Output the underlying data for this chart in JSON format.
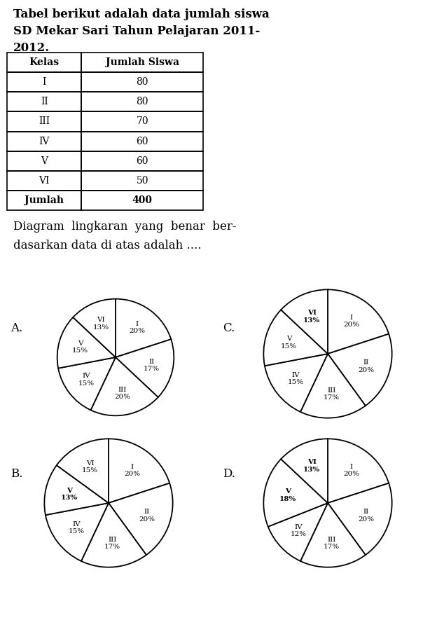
{
  "title_line1": "Tabel berikut adalah data jumlah siswa",
  "title_line2": "SD Mekar Sari Tahun Pelajaran 2011-",
  "title_line3": "2012.",
  "table_headers": [
    "Kelas",
    "Jumlah Siswa"
  ],
  "table_rows": [
    [
      "I",
      "80"
    ],
    [
      "II",
      "80"
    ],
    [
      "III",
      "70"
    ],
    [
      "IV",
      "60"
    ],
    [
      "V",
      "60"
    ],
    [
      "VI",
      "50"
    ]
  ],
  "table_footer": [
    "Jumlah",
    "400"
  ],
  "question_line1": "Diagram  lingkaran  yang  benar  ber-",
  "question_line2": "dasarkan data di atas adalah ....",
  "charts": {
    "A": {
      "labels": [
        "I",
        "II",
        "III",
        "IV",
        "V",
        "VI"
      ],
      "percentages": [
        "20%",
        "17%",
        "20%",
        "15%",
        "15%",
        "13%"
      ],
      "sizes": [
        20,
        17,
        20,
        15,
        15,
        13
      ],
      "bold_labels": []
    },
    "B": {
      "labels": [
        "I",
        "II",
        "III",
        "IV",
        "V",
        "VI"
      ],
      "percentages": [
        "20%",
        "20%",
        "17%",
        "15%",
        "13%",
        "15%"
      ],
      "sizes": [
        20,
        20,
        17,
        15,
        13,
        15
      ],
      "bold_labels": [
        "V"
      ]
    },
    "C": {
      "labels": [
        "I",
        "II",
        "III",
        "IV",
        "V",
        "VI"
      ],
      "percentages": [
        "20%",
        "20%",
        "17%",
        "15%",
        "15%",
        "13%"
      ],
      "sizes": [
        20,
        20,
        17,
        15,
        15,
        13
      ],
      "bold_labels": [
        "VI"
      ]
    },
    "D": {
      "labels": [
        "I",
        "II",
        "III",
        "IV",
        "V",
        "VI"
      ],
      "percentages": [
        "20%",
        "20%",
        "17%",
        "12%",
        "18%",
        "13%"
      ],
      "sizes": [
        20,
        20,
        17,
        12,
        18,
        13
      ],
      "bold_labels": [
        "VI",
        "V"
      ]
    }
  },
  "bg_color": "#ffffff",
  "label_fontsize": 7.5,
  "option_fontsize": 12,
  "title_fontsize": 12,
  "question_fontsize": 12,
  "table_fontsize": 10
}
